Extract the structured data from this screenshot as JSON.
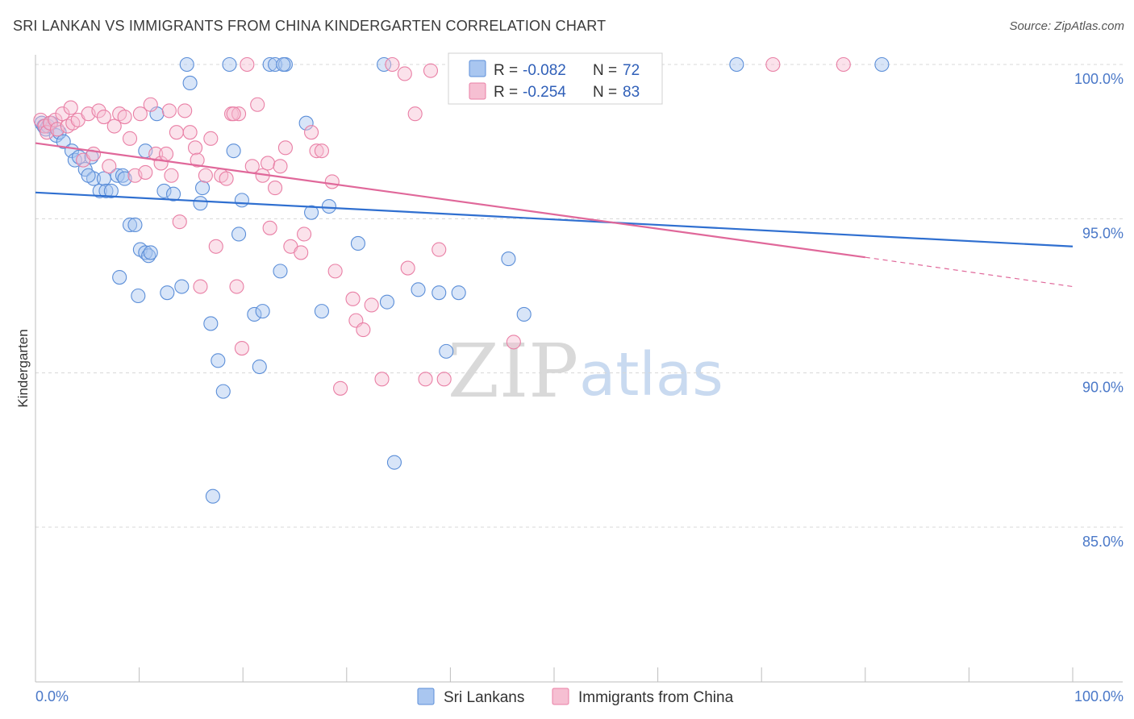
{
  "title": "SRI LANKAN VS IMMIGRANTS FROM CHINA KINDERGARTEN CORRELATION CHART",
  "source": "Source: ZipAtlas.com",
  "watermark": {
    "zip": "ZIP",
    "atlas": "atlas"
  },
  "colors": {
    "blue_fill": "#a9c6f0",
    "blue_stroke": "#5b8ed8",
    "blue_line": "#2f6fd0",
    "pink_fill": "#f6bfd2",
    "pink_stroke": "#e97fa5",
    "pink_line": "#e0689a",
    "grid": "#d8d8d8",
    "tick_text": "#4a78c8"
  },
  "legend": {
    "rows": [
      {
        "r_label": "R =",
        "r_value": "-0.082",
        "n_label": "N =",
        "n_value": "72"
      },
      {
        "r_label": "R =",
        "r_value": "-0.254",
        "n_label": "N =",
        "n_value": "83"
      }
    ]
  },
  "chart_data": {
    "type": "scatter",
    "title": "SRI LANKAN VS IMMIGRANTS FROM CHINA KINDERGARTEN CORRELATION CHART",
    "xlabel": "",
    "ylabel": "Kindergarten",
    "xlim": [
      0,
      100
    ],
    "ylim": [
      80.5,
      100.5
    ],
    "x_tick_labels": [
      "0.0%",
      "100.0%"
    ],
    "y_ticks": [
      85,
      90,
      95,
      100
    ],
    "y_tick_labels": [
      "85.0%",
      "90.0%",
      "95.0%",
      "100.0%"
    ],
    "grid": true,
    "series": [
      {
        "name": "Sri Lankans",
        "r": -0.082,
        "n": 72,
        "trend": {
          "x0": 0,
          "y0": 95.85,
          "x1": 100,
          "y1": 94.1
        },
        "points": [
          [
            0.6,
            98.1
          ],
          [
            0.8,
            98.0
          ],
          [
            1.0,
            97.9
          ],
          [
            1.2,
            98.0
          ],
          [
            1.5,
            98.1
          ],
          [
            2.0,
            97.7
          ],
          [
            2.3,
            97.8
          ],
          [
            2.7,
            97.5
          ],
          [
            3.5,
            97.2
          ],
          [
            3.8,
            96.9
          ],
          [
            4.2,
            97.0
          ],
          [
            4.8,
            96.6
          ],
          [
            5.4,
            97.0
          ],
          [
            5.6,
            96.3
          ],
          [
            6.2,
            95.9
          ],
          [
            6.6,
            96.3
          ],
          [
            6.8,
            95.9
          ],
          [
            7.3,
            95.9
          ],
          [
            7.9,
            96.4
          ],
          [
            8.4,
            96.4
          ],
          [
            8.6,
            96.3
          ],
          [
            9.1,
            94.8
          ],
          [
            9.6,
            94.8
          ],
          [
            10.1,
            94.0
          ],
          [
            10.6,
            93.9
          ],
          [
            10.9,
            93.8
          ],
          [
            11.1,
            93.9
          ],
          [
            10.6,
            97.2
          ],
          [
            11.7,
            98.4
          ],
          [
            12.4,
            95.9
          ],
          [
            12.7,
            92.6
          ],
          [
            13.3,
            95.8
          ],
          [
            14.1,
            92.8
          ],
          [
            14.6,
            100.0
          ],
          [
            14.9,
            99.4
          ],
          [
            16.1,
            96.0
          ],
          [
            15.9,
            95.5
          ],
          [
            16.9,
            91.6
          ],
          [
            17.6,
            90.4
          ],
          [
            18.1,
            89.4
          ],
          [
            18.7,
            100.0
          ],
          [
            19.1,
            97.2
          ],
          [
            19.6,
            94.5
          ],
          [
            19.9,
            95.6
          ],
          [
            21.1,
            91.9
          ],
          [
            21.6,
            90.2
          ],
          [
            21.9,
            92.0
          ],
          [
            22.6,
            100.0
          ],
          [
            23.1,
            100.0
          ],
          [
            24.1,
            100.0
          ],
          [
            23.6,
            93.3
          ],
          [
            23.9,
            100.0
          ],
          [
            26.1,
            98.1
          ],
          [
            26.6,
            95.2
          ],
          [
            27.6,
            92.0
          ],
          [
            28.3,
            95.4
          ],
          [
            31.1,
            94.2
          ],
          [
            33.6,
            100.0
          ],
          [
            33.9,
            92.3
          ],
          [
            34.6,
            87.1
          ],
          [
            36.9,
            92.7
          ],
          [
            38.9,
            92.6
          ],
          [
            39.6,
            90.7
          ],
          [
            40.8,
            92.6
          ],
          [
            45.6,
            93.7
          ],
          [
            47.1,
            91.9
          ],
          [
            67.6,
            100.0
          ],
          [
            81.6,
            100.0
          ],
          [
            17.1,
            86.0
          ],
          [
            9.9,
            92.5
          ],
          [
            8.1,
            93.1
          ],
          [
            5.1,
            96.4
          ]
        ]
      },
      {
        "name": "Immigrants from China",
        "r": -0.254,
        "n": 83,
        "trend": {
          "x0": 0,
          "y0": 97.45,
          "x1": 80,
          "y1": 93.75,
          "dash_x1": 100,
          "dash_y1": 92.8
        },
        "points": [
          [
            0.5,
            98.2
          ],
          [
            0.9,
            98.0
          ],
          [
            1.1,
            97.8
          ],
          [
            1.4,
            98.1
          ],
          [
            1.9,
            98.2
          ],
          [
            2.1,
            97.9
          ],
          [
            2.6,
            98.4
          ],
          [
            3.1,
            98.0
          ],
          [
            3.6,
            98.1
          ],
          [
            4.1,
            98.2
          ],
          [
            4.6,
            96.9
          ],
          [
            5.1,
            98.4
          ],
          [
            5.6,
            97.1
          ],
          [
            6.1,
            98.5
          ],
          [
            6.6,
            98.3
          ],
          [
            7.1,
            96.7
          ],
          [
            7.6,
            98.0
          ],
          [
            8.1,
            98.4
          ],
          [
            8.6,
            98.3
          ],
          [
            9.1,
            97.6
          ],
          [
            9.6,
            96.4
          ],
          [
            10.1,
            98.4
          ],
          [
            10.6,
            96.5
          ],
          [
            11.1,
            98.7
          ],
          [
            11.6,
            97.1
          ],
          [
            12.1,
            96.8
          ],
          [
            12.6,
            97.1
          ],
          [
            13.1,
            96.4
          ],
          [
            13.6,
            97.8
          ],
          [
            13.9,
            94.9
          ],
          [
            14.4,
            98.5
          ],
          [
            14.9,
            97.8
          ],
          [
            15.4,
            97.3
          ],
          [
            15.6,
            96.9
          ],
          [
            15.9,
            92.8
          ],
          [
            16.4,
            96.4
          ],
          [
            16.9,
            97.6
          ],
          [
            17.4,
            94.1
          ],
          [
            17.9,
            96.4
          ],
          [
            18.4,
            96.3
          ],
          [
            18.9,
            98.4
          ],
          [
            19.4,
            92.8
          ],
          [
            19.6,
            98.4
          ],
          [
            19.9,
            90.8
          ],
          [
            20.4,
            100.0
          ],
          [
            20.9,
            96.7
          ],
          [
            21.4,
            98.7
          ],
          [
            21.9,
            96.4
          ],
          [
            22.4,
            96.8
          ],
          [
            22.6,
            94.7
          ],
          [
            23.1,
            96.0
          ],
          [
            23.6,
            96.7
          ],
          [
            24.1,
            97.3
          ],
          [
            24.6,
            94.1
          ],
          [
            25.6,
            93.9
          ],
          [
            25.9,
            94.5
          ],
          [
            26.6,
            97.8
          ],
          [
            27.1,
            97.2
          ],
          [
            27.6,
            97.2
          ],
          [
            28.6,
            96.2
          ],
          [
            28.9,
            93.3
          ],
          [
            30.6,
            92.4
          ],
          [
            30.9,
            91.7
          ],
          [
            31.6,
            91.4
          ],
          [
            32.4,
            92.2
          ],
          [
            33.4,
            89.8
          ],
          [
            34.4,
            100.0
          ],
          [
            35.6,
            99.7
          ],
          [
            35.9,
            93.4
          ],
          [
            36.6,
            98.4
          ],
          [
            37.6,
            89.8
          ],
          [
            38.9,
            94.0
          ],
          [
            39.4,
            89.8
          ],
          [
            40.9,
            100.0
          ],
          [
            41.9,
            100.0
          ],
          [
            46.1,
            91.0
          ],
          [
            71.1,
            100.0
          ],
          [
            77.9,
            100.0
          ],
          [
            3.4,
            98.6
          ],
          [
            12.9,
            98.5
          ],
          [
            19.1,
            98.4
          ],
          [
            29.4,
            89.5
          ],
          [
            38.1,
            99.8
          ]
        ]
      }
    ]
  }
}
